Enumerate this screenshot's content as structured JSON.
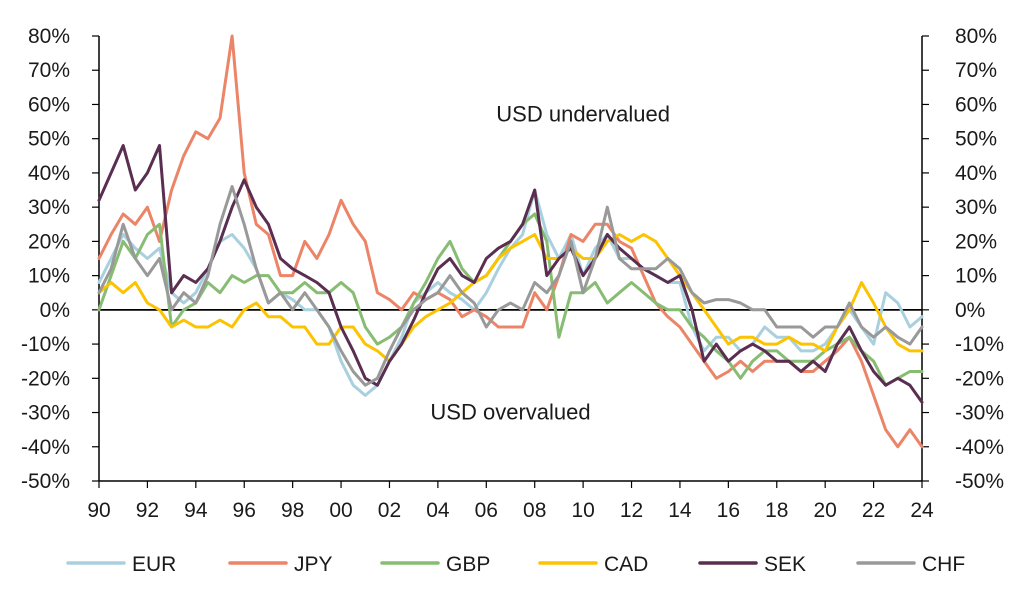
{
  "chart_data": {
    "type": "line",
    "title": "",
    "xlabel": "",
    "ylabel": "",
    "x_range": [
      1990,
      2024
    ],
    "ylim": [
      -50,
      80
    ],
    "y_ticks": [
      -50,
      -40,
      -30,
      -20,
      -10,
      0,
      10,
      20,
      30,
      40,
      50,
      60,
      70,
      80
    ],
    "y_tick_labels": [
      "-50%",
      "-40%",
      "-30%",
      "-20%",
      "-10%",
      "0%",
      "10%",
      "20%",
      "30%",
      "40%",
      "50%",
      "60%",
      "70%",
      "80%"
    ],
    "x_ticks": [
      1990,
      1992,
      1994,
      1996,
      1998,
      2000,
      2002,
      2004,
      2006,
      2008,
      2010,
      2012,
      2014,
      2016,
      2018,
      2020,
      2022,
      2024
    ],
    "x_tick_labels": [
      "90",
      "92",
      "94",
      "96",
      "98",
      "00",
      "02",
      "04",
      "06",
      "08",
      "10",
      "12",
      "14",
      "16",
      "18",
      "20",
      "22",
      "24"
    ],
    "grid": false,
    "legend_position": "bottom",
    "annotations": [
      {
        "text": "USD undervalued",
        "x": 2010,
        "y": 55
      },
      {
        "text": "USD overvalued",
        "x": 2007,
        "y": -32
      }
    ],
    "series": [
      {
        "name": "EUR",
        "color": "#a9d0de",
        "x": [
          1990,
          1990.5,
          1991,
          1991.5,
          1992,
          1992.5,
          1993,
          1993.5,
          1994,
          1994.5,
          1995,
          1995.5,
          1996,
          1996.5,
          1997,
          1997.5,
          1998,
          1998.5,
          1999,
          1999.5,
          2000,
          2000.5,
          2001,
          2001.5,
          2002,
          2002.5,
          2003,
          2003.5,
          2004,
          2004.5,
          2005,
          2005.5,
          2006,
          2006.5,
          2007,
          2007.5,
          2008,
          2008.5,
          2009,
          2009.5,
          2010,
          2010.5,
          2011,
          2011.5,
          2012,
          2012.5,
          2013,
          2013.5,
          2014,
          2014.5,
          2015,
          2015.5,
          2016,
          2016.5,
          2017,
          2017.5,
          2018,
          2018.5,
          2019,
          2019.5,
          2020,
          2020.5,
          2021,
          2021.5,
          2022,
          2022.5,
          2023,
          2023.5,
          2024
        ],
        "y": [
          8,
          15,
          22,
          18,
          15,
          18,
          5,
          2,
          5,
          12,
          20,
          22,
          18,
          12,
          2,
          5,
          3,
          0,
          0,
          -5,
          -15,
          -22,
          -25,
          -22,
          -15,
          -8,
          2,
          5,
          8,
          5,
          3,
          0,
          5,
          12,
          18,
          22,
          35,
          22,
          15,
          22,
          10,
          18,
          22,
          15,
          15,
          12,
          10,
          8,
          8,
          -5,
          -12,
          -8,
          -8,
          -12,
          -10,
          -5,
          -8,
          -8,
          -12,
          -12,
          -10,
          -5,
          0,
          -5,
          -10,
          5,
          2,
          -5,
          -2
        ]
      },
      {
        "name": "JPY",
        "color": "#ec8467",
        "x": [
          1990,
          1990.5,
          1991,
          1991.5,
          1992,
          1992.5,
          1993,
          1993.5,
          1994,
          1994.5,
          1995,
          1995.5,
          1996,
          1996.5,
          1997,
          1997.5,
          1998,
          1998.5,
          1999,
          1999.5,
          2000,
          2000.5,
          2001,
          2001.5,
          2002,
          2002.5,
          2003,
          2003.5,
          2004,
          2004.5,
          2005,
          2005.5,
          2006,
          2006.5,
          2007,
          2007.5,
          2008,
          2008.5,
          2009,
          2009.5,
          2010,
          2010.5,
          2011,
          2011.5,
          2012,
          2012.5,
          2013,
          2013.5,
          2014,
          2014.5,
          2015,
          2015.5,
          2016,
          2016.5,
          2017,
          2017.5,
          2018,
          2018.5,
          2019,
          2019.5,
          2020,
          2020.5,
          2021,
          2021.5,
          2022,
          2022.5,
          2023,
          2023.5,
          2024
        ],
        "y": [
          15,
          22,
          28,
          25,
          30,
          20,
          35,
          45,
          52,
          50,
          56,
          80,
          40,
          25,
          22,
          10,
          10,
          20,
          15,
          22,
          32,
          25,
          20,
          5,
          3,
          0,
          5,
          3,
          5,
          3,
          -2,
          0,
          -2,
          -5,
          -5,
          -5,
          5,
          0,
          10,
          22,
          20,
          25,
          25,
          20,
          18,
          10,
          2,
          -2,
          -5,
          -10,
          -15,
          -20,
          -18,
          -15,
          -18,
          -15,
          -15,
          -15,
          -18,
          -18,
          -15,
          -12,
          -8,
          -15,
          -25,
          -35,
          -40,
          -35,
          -40
        ]
      },
      {
        "name": "GBP",
        "color": "#87bd72",
        "x": [
          1990,
          1990.5,
          1991,
          1991.5,
          1992,
          1992.5,
          1993,
          1993.5,
          1994,
          1994.5,
          1995,
          1995.5,
          1996,
          1996.5,
          1997,
          1997.5,
          1998,
          1998.5,
          1999,
          1999.5,
          2000,
          2000.5,
          2001,
          2001.5,
          2002,
          2002.5,
          2003,
          2003.5,
          2004,
          2004.5,
          2005,
          2005.5,
          2006,
          2006.5,
          2007,
          2007.5,
          2008,
          2008.5,
          2009,
          2009.5,
          2010,
          2010.5,
          2011,
          2011.5,
          2012,
          2012.5,
          2013,
          2013.5,
          2014,
          2014.5,
          2015,
          2015.5,
          2016,
          2016.5,
          2017,
          2017.5,
          2018,
          2018.5,
          2019,
          2019.5,
          2020,
          2020.5,
          2021,
          2021.5,
          2022,
          2022.5,
          2023,
          2023.5,
          2024
        ],
        "y": [
          0,
          10,
          20,
          15,
          22,
          25,
          -5,
          0,
          2,
          8,
          5,
          10,
          8,
          10,
          10,
          5,
          5,
          8,
          5,
          5,
          8,
          5,
          -5,
          -10,
          -8,
          -5,
          2,
          8,
          15,
          20,
          12,
          8,
          10,
          15,
          20,
          25,
          28,
          20,
          -8,
          5,
          5,
          8,
          2,
          5,
          8,
          5,
          2,
          0,
          0,
          -5,
          -8,
          -12,
          -15,
          -20,
          -15,
          -12,
          -12,
          -15,
          -15,
          -15,
          -12,
          -10,
          -8,
          -12,
          -15,
          -22,
          -20,
          -18,
          -18
        ]
      },
      {
        "name": "CAD",
        "color": "#fcc300",
        "x": [
          1990,
          1990.5,
          1991,
          1991.5,
          1992,
          1992.5,
          1993,
          1993.5,
          1994,
          1994.5,
          1995,
          1995.5,
          1996,
          1996.5,
          1997,
          1997.5,
          1998,
          1998.5,
          1999,
          1999.5,
          2000,
          2000.5,
          2001,
          2001.5,
          2002,
          2002.5,
          2003,
          2003.5,
          2004,
          2004.5,
          2005,
          2005.5,
          2006,
          2006.5,
          2007,
          2007.5,
          2008,
          2008.5,
          2009,
          2009.5,
          2010,
          2010.5,
          2011,
          2011.5,
          2012,
          2012.5,
          2013,
          2013.5,
          2014,
          2014.5,
          2015,
          2015.5,
          2016,
          2016.5,
          2017,
          2017.5,
          2018,
          2018.5,
          2019,
          2019.5,
          2020,
          2020.5,
          2021,
          2021.5,
          2022,
          2022.5,
          2023,
          2023.5,
          2024
        ],
        "y": [
          5,
          8,
          5,
          8,
          2,
          0,
          -5,
          -3,
          -5,
          -5,
          -3,
          -5,
          0,
          2,
          -2,
          -2,
          -5,
          -5,
          -10,
          -10,
          -5,
          -5,
          -10,
          -12,
          -15,
          -10,
          -5,
          -2,
          0,
          2,
          5,
          8,
          10,
          15,
          18,
          20,
          22,
          15,
          15,
          18,
          15,
          15,
          20,
          22,
          20,
          22,
          20,
          15,
          10,
          5,
          0,
          -5,
          -10,
          -8,
          -8,
          -10,
          -10,
          -8,
          -10,
          -10,
          -12,
          -5,
          0,
          8,
          2,
          -5,
          -10,
          -12,
          -12
        ]
      },
      {
        "name": "SEK",
        "color": "#5a2e50",
        "x": [
          1990,
          1990.5,
          1991,
          1991.5,
          1992,
          1992.5,
          1993,
          1993.5,
          1994,
          1994.5,
          1995,
          1995.5,
          1996,
          1996.5,
          1997,
          1997.5,
          1998,
          1998.5,
          1999,
          1999.5,
          2000,
          2000.5,
          2001,
          2001.5,
          2002,
          2002.5,
          2003,
          2003.5,
          2004,
          2004.5,
          2005,
          2005.5,
          2006,
          2006.5,
          2007,
          2007.5,
          2008,
          2008.5,
          2009,
          2009.5,
          2010,
          2010.5,
          2011,
          2011.5,
          2012,
          2012.5,
          2013,
          2013.5,
          2014,
          2014.5,
          2015,
          2015.5,
          2016,
          2016.5,
          2017,
          2017.5,
          2018,
          2018.5,
          2019,
          2019.5,
          2020,
          2020.5,
          2021,
          2021.5,
          2022,
          2022.5,
          2023,
          2023.5,
          2024
        ],
        "y": [
          32,
          40,
          48,
          35,
          40,
          48,
          5,
          10,
          8,
          12,
          20,
          30,
          38,
          30,
          25,
          15,
          12,
          10,
          8,
          5,
          -5,
          -12,
          -20,
          -22,
          -15,
          -10,
          -3,
          5,
          12,
          15,
          10,
          8,
          15,
          18,
          20,
          25,
          35,
          10,
          15,
          18,
          10,
          15,
          22,
          18,
          15,
          12,
          10,
          8,
          10,
          0,
          -15,
          -10,
          -15,
          -12,
          -10,
          -12,
          -15,
          -15,
          -18,
          -15,
          -18,
          -10,
          -5,
          -12,
          -18,
          -22,
          -20,
          -22,
          -27
        ]
      },
      {
        "name": "CHF",
        "color": "#999999",
        "x": [
          1990,
          1990.5,
          1991,
          1991.5,
          1992,
          1992.5,
          1993,
          1993.5,
          1994,
          1994.5,
          1995,
          1995.5,
          1996,
          1996.5,
          1997,
          1997.5,
          1998,
          1998.5,
          1999,
          1999.5,
          2000,
          2000.5,
          2001,
          2001.5,
          2002,
          2002.5,
          2003,
          2003.5,
          2004,
          2004.5,
          2005,
          2005.5,
          2006,
          2006.5,
          2007,
          2007.5,
          2008,
          2008.5,
          2009,
          2009.5,
          2010,
          2010.5,
          2011,
          2011.5,
          2012,
          2012.5,
          2013,
          2013.5,
          2014,
          2014.5,
          2015,
          2015.5,
          2016,
          2016.5,
          2017,
          2017.5,
          2018,
          2018.5,
          2019,
          2019.5,
          2020,
          2020.5,
          2021,
          2021.5,
          2022,
          2022.5,
          2023,
          2023.5,
          2024
        ],
        "y": [
          5,
          12,
          25,
          15,
          10,
          15,
          0,
          5,
          2,
          10,
          25,
          36,
          25,
          12,
          2,
          5,
          0,
          5,
          0,
          -5,
          -12,
          -18,
          -22,
          -20,
          -12,
          -5,
          0,
          3,
          5,
          10,
          5,
          2,
          -5,
          0,
          2,
          0,
          8,
          5,
          10,
          20,
          5,
          15,
          30,
          15,
          12,
          12,
          12,
          15,
          12,
          5,
          2,
          3,
          3,
          2,
          0,
          0,
          -5,
          -5,
          -5,
          -8,
          -5,
          -5,
          2,
          -5,
          -8,
          -5,
          -8,
          -10,
          -5
        ]
      }
    ]
  }
}
